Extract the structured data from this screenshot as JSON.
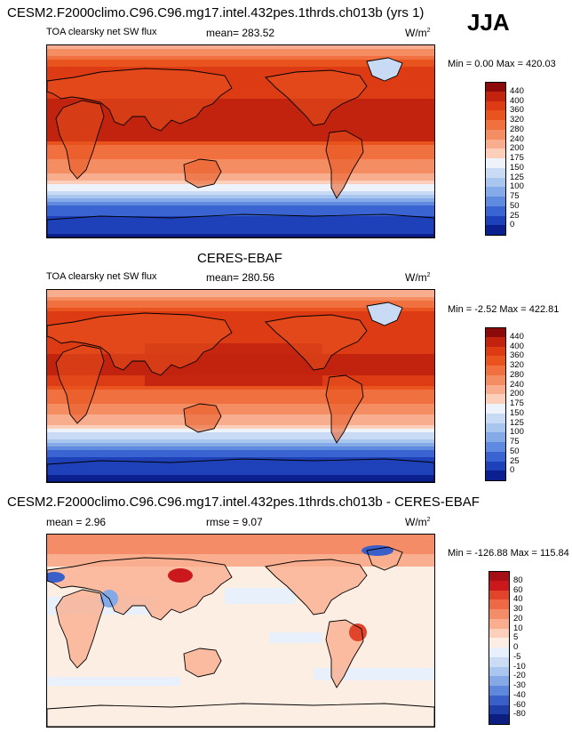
{
  "header": {
    "model_title": "CESM2.F2000climo.C96.C96.mg17.intel.432pes.1thrds.ch013b (yrs 1)",
    "season": "JJA"
  },
  "panels": [
    {
      "title": "",
      "variable": "TOA clearsky net SW flux",
      "stat": "mean= 283.52",
      "units": "W/m",
      "units_sup": "2",
      "minmax": "Min =   0.00 Max = 420.03",
      "colorbar": {
        "labels": [
          "440",
          "400",
          "360",
          "320",
          "280",
          "240",
          "200",
          "175",
          "150",
          "125",
          "100",
          "75",
          "50",
          "25",
          "0"
        ],
        "colors": [
          "#8c0a0a",
          "#c2230f",
          "#dc3b14",
          "#e8531e",
          "#f07040",
          "#f58d63",
          "#f8ad8e",
          "#fbcfb9",
          "#eef3fb",
          "#c9dbf4",
          "#a9c6ef",
          "#84aae8",
          "#5f8ae0",
          "#3a64d2",
          "#1e40b8",
          "#0b1f8f"
        ]
      }
    },
    {
      "title": "CERES-EBAF",
      "variable": "TOA clearsky net SW flux",
      "stat": "mean= 280.56",
      "units": "W/m",
      "units_sup": "2",
      "minmax": "Min =  -2.52 Max = 422.81",
      "colorbar": {
        "labels": [
          "440",
          "400",
          "360",
          "320",
          "280",
          "240",
          "200",
          "175",
          "150",
          "125",
          "100",
          "75",
          "50",
          "25",
          "0"
        ],
        "colors": [
          "#8c0a0a",
          "#c2230f",
          "#dc3b14",
          "#e8531e",
          "#f07040",
          "#f58d63",
          "#f8ad8e",
          "#fbcfb9",
          "#eef3fb",
          "#c9dbf4",
          "#a9c6ef",
          "#84aae8",
          "#5f8ae0",
          "#3a64d2",
          "#1e40b8",
          "#0b1f8f"
        ]
      }
    },
    {
      "title": "CESM2.F2000climo.C96.C96.mg17.intel.432pes.1thrds.ch013b - CERES-EBAF",
      "stat": "mean =   2.96",
      "stat2": "rmse =   9.07",
      "units": "W/m",
      "units_sup": "2",
      "minmax": "Min = -126.88 Max = 115.84",
      "colorbar": {
        "labels": [
          "80",
          "60",
          "40",
          "30",
          "20",
          "10",
          "5",
          "0",
          "-5",
          "-10",
          "-20",
          "-30",
          "-40",
          "-60",
          "-80"
        ],
        "colors": [
          "#a50f15",
          "#cb181d",
          "#e0452b",
          "#ee6a47",
          "#f58c68",
          "#f9ae8f",
          "#fcd0bb",
          "#fdeee4",
          "#e8f0fb",
          "#c9dcf4",
          "#a8c6ee",
          "#84a9e6",
          "#5f87dc",
          "#3b5fc8",
          "#1f3ea8",
          "#0c1f80"
        ]
      }
    }
  ],
  "chart_data": [
    {
      "type": "heatmap",
      "title": "CESM2.F2000climo.C96.C96.mg17.intel.432pes.1thrds.ch013b (yrs 1)",
      "subtitle": "TOA clearsky net SW flux",
      "season": "JJA",
      "mean": 283.52,
      "min": 0.0,
      "max": 420.03,
      "units": "W/m2",
      "contour_levels": [
        0,
        25,
        50,
        75,
        100,
        125,
        150,
        175,
        200,
        240,
        280,
        320,
        360,
        400,
        440
      ]
    },
    {
      "type": "heatmap",
      "title": "CERES-EBAF",
      "subtitle": "TOA clearsky net SW flux",
      "mean": 280.56,
      "min": -2.52,
      "max": 422.81,
      "units": "W/m2",
      "contour_levels": [
        0,
        25,
        50,
        75,
        100,
        125,
        150,
        175,
        200,
        240,
        280,
        320,
        360,
        400,
        440
      ]
    },
    {
      "type": "heatmap",
      "title": "CESM2.F2000climo.C96.C96.mg17.intel.432pes.1thrds.ch013b - CERES-EBAF",
      "mean": 2.96,
      "rmse": 9.07,
      "min": -126.88,
      "max": 115.84,
      "units": "W/m2",
      "contour_levels": [
        -80,
        -60,
        -40,
        -30,
        -20,
        -10,
        -5,
        0,
        5,
        10,
        20,
        30,
        40,
        60,
        80
      ]
    }
  ]
}
